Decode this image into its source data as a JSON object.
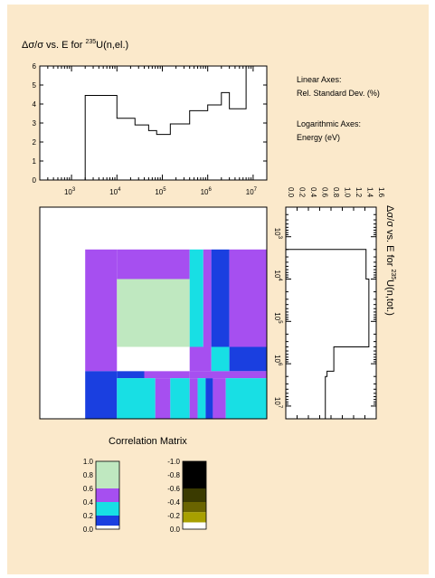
{
  "chart_data": [
    {
      "type": "step",
      "title": "Δσ/σ vs. E for ²³⁵U(n,el.)",
      "title_main": "Δσ/σ vs. E for ",
      "title_sup": "235",
      "title_tail": "U(n,el.)",
      "xscale": "log",
      "xlim": [
        200,
        20000000
      ],
      "ylim": [
        0,
        6
      ],
      "yticks": [
        "0",
        "1",
        "2",
        "3",
        "4",
        "5",
        "6"
      ],
      "xtick_labels": [
        {
          "base": "10",
          "exp": "3",
          "value": 1000
        },
        {
          "base": "10",
          "exp": "4",
          "value": 10000
        },
        {
          "base": "10",
          "exp": "5",
          "value": 100000
        },
        {
          "base": "10",
          "exp": "6",
          "value": 1000000
        },
        {
          "base": "10",
          "exp": "7",
          "value": 10000000
        }
      ],
      "steps": [
        {
          "x0": 2000,
          "x1": 10000,
          "y": 4.45
        },
        {
          "x0": 10000,
          "x1": 25000,
          "y": 3.25
        },
        {
          "x0": 25000,
          "x1": 50000,
          "y": 2.9
        },
        {
          "x0": 50000,
          "x1": 75000,
          "y": 2.6
        },
        {
          "x0": 75000,
          "x1": 150000,
          "y": 2.4
        },
        {
          "x0": 150000,
          "x1": 400000,
          "y": 2.95
        },
        {
          "x0": 400000,
          "x1": 1000000,
          "y": 3.65
        },
        {
          "x0": 1000000,
          "x1": 2000000,
          "y": 3.95
        },
        {
          "x0": 2000000,
          "x1": 3000000,
          "y": 4.6
        },
        {
          "x0": 3000000,
          "x1": 7000000,
          "y": 3.75
        },
        {
          "x0": 7000000,
          "x1": 20000000,
          "y": 6.0
        }
      ]
    },
    {
      "type": "step",
      "orientation": "vertical",
      "title_main": "Δσ/σ vs. E for ",
      "title_sup": "235",
      "title_tail": "U(n,tot.)",
      "xlim": [
        0,
        1.6
      ],
      "xticks": [
        "0.0",
        "0.2",
        "0.4",
        "0.6",
        "0.8",
        "1.0",
        "1.2",
        "1.4",
        "1.6"
      ],
      "yscale": "log",
      "ylim": [
        200,
        20000000
      ],
      "ytick_labels": [
        {
          "base": "10",
          "exp": "3",
          "value": 1000
        },
        {
          "base": "10",
          "exp": "4",
          "value": 10000
        },
        {
          "base": "10",
          "exp": "5",
          "value": 100000
        },
        {
          "base": "10",
          "exp": "6",
          "value": 1000000
        },
        {
          "base": "10",
          "exp": "7",
          "value": 10000000
        }
      ],
      "steps": [
        {
          "e0": 2000,
          "e1": 10000,
          "v": 1.42
        },
        {
          "e0": 10000,
          "e1": 400000,
          "v": 1.47
        },
        {
          "e0": 400000,
          "e1": 1500000,
          "v": 0.85
        },
        {
          "e0": 1500000,
          "e1": 2000000,
          "v": 0.73
        },
        {
          "e0": 2000000,
          "e1": 20000000,
          "v": 0.7
        }
      ]
    },
    {
      "type": "heatmap",
      "title": "Correlation Matrix",
      "scale": "log-energy",
      "elim": [
        200,
        20000000
      ],
      "cells": [
        {
          "x0": 2000,
          "x1": 10000,
          "y0": 2000,
          "y1": 1500000,
          "v": 0.5
        },
        {
          "x0": 10000,
          "x1": 400000,
          "y0": 2000,
          "y1": 10000,
          "v": 0.5
        },
        {
          "x0": 10000,
          "x1": 400000,
          "y0": 10000,
          "y1": 400000,
          "v": 0.8
        },
        {
          "x0": 400000,
          "x1": 800000,
          "y0": 2000,
          "y1": 400000,
          "v": 0.3
        },
        {
          "x0": 800000,
          "x1": 1200000,
          "y0": 2000,
          "y1": 400000,
          "v": 0.5
        },
        {
          "x0": 1200000,
          "x1": 3000000,
          "y0": 2000,
          "y1": 400000,
          "v": 0.1
        },
        {
          "x0": 3000000,
          "x1": 20000000,
          "y0": 2000,
          "y1": 400000,
          "v": 0.5
        },
        {
          "x0": 400000,
          "x1": 1200000,
          "y0": 400000,
          "y1": 1500000,
          "v": 0.5
        },
        {
          "x0": 1200000,
          "x1": 3000000,
          "y0": 400000,
          "y1": 1500000,
          "v": 0.3
        },
        {
          "x0": 3000000,
          "x1": 20000000,
          "y0": 400000,
          "y1": 1500000,
          "v": 0.1
        },
        {
          "x0": 10000,
          "x1": 40000,
          "y0": 1500000,
          "y1": 2200000,
          "v": 0.1
        },
        {
          "x0": 40000,
          "x1": 400000,
          "y0": 1500000,
          "y1": 2200000,
          "v": 0.5
        },
        {
          "x0": 400000,
          "x1": 20000000,
          "y0": 1500000,
          "y1": 2200000,
          "v": 0.5
        },
        {
          "x0": 2000,
          "x1": 10000,
          "y0": 1500000,
          "y1": 20000000,
          "v": 0.1
        },
        {
          "x0": 10000,
          "x1": 70000,
          "y0": 2200000,
          "y1": 20000000,
          "v": 0.3
        },
        {
          "x0": 70000,
          "x1": 150000,
          "y0": 2200000,
          "y1": 20000000,
          "v": 0.5
        },
        {
          "x0": 150000,
          "x1": 400000,
          "y0": 2200000,
          "y1": 20000000,
          "v": 0.3
        },
        {
          "x0": 400000,
          "x1": 600000,
          "y0": 2200000,
          "y1": 20000000,
          "v": 0.5
        },
        {
          "x0": 600000,
          "x1": 900000,
          "y0": 2200000,
          "y1": 20000000,
          "v": 0.3
        },
        {
          "x0": 900000,
          "x1": 1300000,
          "y0": 2200000,
          "y1": 20000000,
          "v": 0.1
        },
        {
          "x0": 1300000,
          "x1": 2500000,
          "y0": 2200000,
          "y1": 20000000,
          "v": 0.5
        },
        {
          "x0": 2500000,
          "x1": 20000000,
          "y0": 2200000,
          "y1": 20000000,
          "v": 0.3
        }
      ]
    }
  ],
  "legend_text": {
    "linear": "Linear Axes:",
    "linear_val": "Rel. Standard Dev. (%)",
    "log": "Logarithmic Axes:",
    "log_val": "Energy (eV)"
  },
  "positive_scale": {
    "labels": [
      "1.0",
      "0.8",
      "0.6",
      "0.4",
      "0.2",
      "0.0"
    ],
    "bands": [
      {
        "min": 0.6,
        "max": 1.0,
        "color": "#bfe8c0"
      },
      {
        "min": 0.4,
        "max": 0.6,
        "color": "#a64ff0"
      },
      {
        "min": 0.2,
        "max": 0.4,
        "color": "#18dfe4"
      },
      {
        "min": 0.05,
        "max": 0.2,
        "color": "#1a3fe0"
      },
      {
        "min": 0.0,
        "max": 0.05,
        "color": "#ffffff"
      }
    ]
  },
  "negative_scale": {
    "labels": [
      "-1.0",
      "-0.8",
      "-0.6",
      "-0.4",
      "-0.2",
      "0.0"
    ],
    "bands": [
      {
        "min": -1.0,
        "max": -0.6,
        "color": "#000000"
      },
      {
        "min": -0.6,
        "max": -0.4,
        "color": "#3a3a00"
      },
      {
        "min": -0.4,
        "max": -0.25,
        "color": "#6a6400"
      },
      {
        "min": -0.25,
        "max": -0.1,
        "color": "#a8a000"
      },
      {
        "min": -0.1,
        "max": 0.0,
        "color": "#ffffff"
      }
    ]
  }
}
